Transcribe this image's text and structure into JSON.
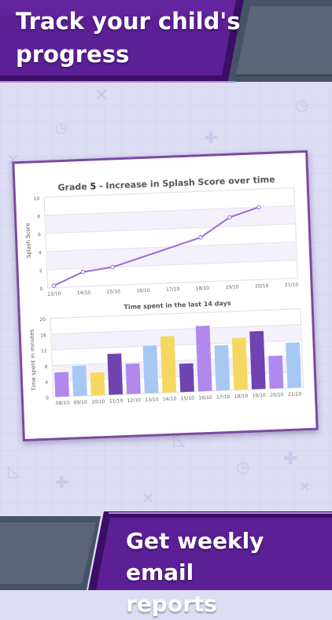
{
  "banner_top": {
    "line1": "Track your child's",
    "line2": "progress"
  },
  "banner_bottom": {
    "line1": "Get weekly email",
    "line2": "reports"
  },
  "colors": {
    "purple_dark": "#4a1a78",
    "purple_mid": "#6b2fa0",
    "bar_lilac": "#b088ee",
    "bar_blue": "#a8c8f4",
    "bar_yellow": "#f6d860",
    "bar_purple": "#6f44b0"
  },
  "chart_data": [
    {
      "type": "line",
      "title_prefix": "Grade ",
      "title_bold": "5",
      "title_rest": " - Increase in Splash Score over time",
      "ylabel": "Splash Score",
      "ylim": [
        0,
        10
      ],
      "yticks": [
        "0",
        "2",
        "4",
        "6",
        "8",
        "10"
      ],
      "x": [
        "13/10",
        "14/10",
        "15/10",
        "16/10",
        "17/10",
        "18/10",
        "19/10",
        "20/10",
        "21/10"
      ],
      "values": [
        0.2,
        1.6,
        2.0,
        null,
        null,
        4.9,
        7.0,
        8.0,
        null
      ]
    },
    {
      "type": "bar",
      "title": "Time spent in the last 14 days",
      "ylabel": "Time spent in minutes",
      "ylim": [
        0,
        20
      ],
      "yticks": [
        "0",
        "4",
        "8",
        "12",
        "16",
        "20"
      ],
      "categories": [
        "08/10",
        "09/10",
        "10/10",
        "11/10",
        "12/10",
        "13/10",
        "14/10",
        "15/10",
        "16/10",
        "17/10",
        "18/10",
        "19/10",
        "20/10",
        "21/10"
      ],
      "values": [
        6.2,
        7.7,
        5.8,
        10.4,
        7.7,
        12.1,
        14.3,
        7.2,
        16.6,
        11.5,
        13.2,
        14.7,
        8.3,
        11.5
      ],
      "colors": [
        "lilac",
        "blue",
        "yellow",
        "purple",
        "lilac",
        "blue",
        "yellow",
        "purple",
        "lilac",
        "blue",
        "yellow",
        "purple",
        "lilac",
        "blue"
      ]
    }
  ]
}
